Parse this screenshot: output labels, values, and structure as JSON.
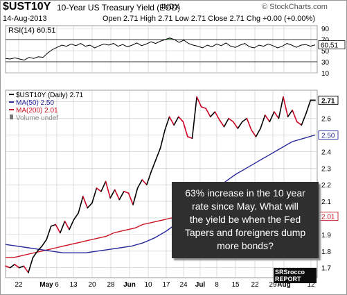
{
  "header": {
    "symbol": "$UST10Y",
    "description": "10-Year US Treasury Yield (EOD)",
    "exchange": "INDX",
    "credit": "© StockCharts.com",
    "date": "14-Aug-2013",
    "ohlc": "Open 2.71  High 2.71  Low 2.71  Close 2.71  Chg +0.00 (+0.00%)"
  },
  "annotation": {
    "lines": [
      "63% increase in the 10 year",
      "rate since May.  What will",
      "the yield be when the Fed",
      "Tapers and foreigners dump",
      "more bonds?"
    ]
  },
  "logo": {
    "line1": "SRSrocco",
    "line2": "REPORT"
  },
  "colors": {
    "price": "#000000",
    "price_down": "#cc0022",
    "ma50": "#2a2a9c",
    "ma200": "#cc1122",
    "rsi": "#000000",
    "rsi_overbought_fill": "#6aaa6a",
    "grid": "#c8c8c8"
  },
  "chart_data": [
    {
      "type": "line",
      "panel": "indicator",
      "title": "RSI(14) 60.51",
      "x_ticks": [
        "22",
        "May",
        "6",
        "13",
        "20",
        "28",
        "Jun",
        "10",
        "17",
        "24",
        "Jul",
        "8",
        "15",
        "22",
        "29",
        "Aug",
        "12"
      ],
      "y_ticks": [
        10,
        30,
        50,
        70,
        90
      ],
      "ylim": [
        10,
        95
      ],
      "reference_lines": [
        30,
        70
      ],
      "last_value": 60.51,
      "last_value_label": "60.51",
      "series": [
        {
          "name": "RSI(14)",
          "values": [
            36,
            35,
            37,
            35,
            33,
            38,
            36,
            39,
            38,
            46,
            52,
            56,
            60,
            58,
            62,
            59,
            63,
            58,
            60,
            55,
            59,
            62,
            60,
            63,
            58,
            61,
            57,
            60,
            64,
            59,
            62,
            66,
            63,
            67,
            70,
            73,
            70,
            65,
            69,
            63,
            60,
            58,
            55,
            60,
            57,
            62,
            59,
            64,
            58,
            56,
            60,
            63,
            57,
            55,
            60,
            58,
            62,
            59,
            55,
            58,
            63,
            60,
            56,
            60,
            61,
            58,
            60.51
          ]
        }
      ]
    },
    {
      "type": "line",
      "panel": "price",
      "title": "$UST10Y (Daily) 2.71",
      "x_ticks": [
        "22",
        "May",
        "6",
        "13",
        "20",
        "28",
        "Jun",
        "10",
        "17",
        "24",
        "Jul",
        "8",
        "15",
        "22",
        "29",
        "Aug",
        "12"
      ],
      "y_ticks": [
        1.7,
        1.8,
        1.9,
        2.0,
        2.1,
        2.2,
        2.3,
        2.4,
        2.5,
        2.6,
        2.7
      ],
      "ylim": [
        1.64,
        2.77
      ],
      "legend": [
        "$UST10Y (Daily) 2.71",
        "MA(50) 2.50",
        "MA(200) 2.01",
        "Volume undef"
      ],
      "last_value_labels": [
        "2.71",
        "2.50",
        "2.01"
      ],
      "series": [
        {
          "name": "$UST10Y (Daily)",
          "values": [
            1.71,
            1.7,
            1.72,
            1.7,
            1.71,
            1.67,
            1.76,
            1.8,
            1.83,
            1.87,
            1.95,
            1.96,
            1.91,
            1.98,
            1.93,
            1.99,
            2.03,
            2.13,
            2.06,
            2.09,
            2.18,
            2.16,
            2.22,
            2.12,
            2.17,
            2.11,
            2.16,
            2.15,
            2.08,
            2.18,
            2.23,
            2.2,
            2.28,
            2.35,
            2.42,
            2.53,
            2.61,
            2.56,
            2.61,
            2.58,
            2.49,
            2.48,
            2.73,
            2.67,
            2.66,
            2.61,
            2.64,
            2.59,
            2.55,
            2.6,
            2.58,
            2.54,
            2.58,
            2.6,
            2.53,
            2.49,
            2.54,
            2.62,
            2.58,
            2.64,
            2.6,
            2.73,
            2.61,
            2.65,
            2.58,
            2.56,
            2.63,
            2.71,
            2.71
          ]
        },
        {
          "name": "MA(50)",
          "values": [
            1.84,
            1.83,
            1.82,
            1.81,
            1.8,
            1.79,
            1.79,
            1.79,
            1.8,
            1.81,
            1.82,
            1.83,
            1.85,
            1.88,
            1.92,
            1.97,
            2.03,
            2.1,
            2.16,
            2.21,
            2.26,
            2.3,
            2.34,
            2.38,
            2.42,
            2.46,
            2.48,
            2.5
          ]
        },
        {
          "name": "MA(200)",
          "values": [
            1.76,
            1.76,
            1.77,
            1.78,
            1.79,
            1.8,
            1.81,
            1.82,
            1.83,
            1.84,
            1.85,
            1.86,
            1.87,
            1.88,
            1.89,
            1.91,
            1.92,
            1.93,
            1.94,
            1.96,
            1.97,
            1.98,
            1.99,
            2.0,
            2.01
          ]
        }
      ]
    }
  ]
}
